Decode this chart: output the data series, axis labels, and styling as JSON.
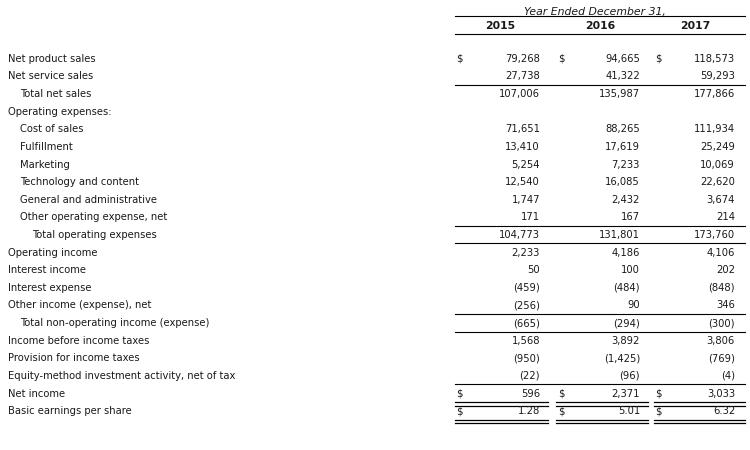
{
  "header_title": "Year Ended December 31,",
  "columns": [
    "2015",
    "2016",
    "2017"
  ],
  "rows": [
    {
      "label": "Net product sales",
      "indent": 0,
      "dollar_sign": true,
      "vals": [
        "79,268",
        "94,665",
        "118,573"
      ],
      "line_below": false,
      "double_below": false
    },
    {
      "label": "Net service sales",
      "indent": 0,
      "dollar_sign": false,
      "vals": [
        "27,738",
        "41,322",
        "59,293"
      ],
      "line_below": true,
      "double_below": false
    },
    {
      "label": "Total net sales",
      "indent": 1,
      "dollar_sign": false,
      "vals": [
        "107,006",
        "135,987",
        "177,866"
      ],
      "line_below": false,
      "double_below": false
    },
    {
      "label": "Operating expenses:",
      "indent": 0,
      "dollar_sign": false,
      "vals": [
        "",
        "",
        ""
      ],
      "line_below": false,
      "double_below": false
    },
    {
      "label": "Cost of sales",
      "indent": 1,
      "dollar_sign": false,
      "vals": [
        "71,651",
        "88,265",
        "111,934"
      ],
      "line_below": false,
      "double_below": false
    },
    {
      "label": "Fulfillment",
      "indent": 1,
      "dollar_sign": false,
      "vals": [
        "13,410",
        "17,619",
        "25,249"
      ],
      "line_below": false,
      "double_below": false
    },
    {
      "label": "Marketing",
      "indent": 1,
      "dollar_sign": false,
      "vals": [
        "5,254",
        "7,233",
        "10,069"
      ],
      "line_below": false,
      "double_below": false
    },
    {
      "label": "Technology and content",
      "indent": 1,
      "dollar_sign": false,
      "vals": [
        "12,540",
        "16,085",
        "22,620"
      ],
      "line_below": false,
      "double_below": false
    },
    {
      "label": "General and administrative",
      "indent": 1,
      "dollar_sign": false,
      "vals": [
        "1,747",
        "2,432",
        "3,674"
      ],
      "line_below": false,
      "double_below": false
    },
    {
      "label": "Other operating expense, net",
      "indent": 1,
      "dollar_sign": false,
      "vals": [
        "171",
        "167",
        "214"
      ],
      "line_below": true,
      "double_below": false
    },
    {
      "label": "Total operating expenses",
      "indent": 2,
      "dollar_sign": false,
      "vals": [
        "104,773",
        "131,801",
        "173,760"
      ],
      "line_below": true,
      "double_below": false
    },
    {
      "label": "Operating income",
      "indent": 0,
      "dollar_sign": false,
      "vals": [
        "2,233",
        "4,186",
        "4,106"
      ],
      "line_below": false,
      "double_below": false
    },
    {
      "label": "Interest income",
      "indent": 0,
      "dollar_sign": false,
      "vals": [
        "50",
        "100",
        "202"
      ],
      "line_below": false,
      "double_below": false
    },
    {
      "label": "Interest expense",
      "indent": 0,
      "dollar_sign": false,
      "vals": [
        "(459)",
        "(484)",
        "(848)"
      ],
      "line_below": false,
      "double_below": false
    },
    {
      "label": "Other income (expense), net",
      "indent": 0,
      "dollar_sign": false,
      "vals": [
        "(256)",
        "90",
        "346"
      ],
      "line_below": true,
      "double_below": false
    },
    {
      "label": "Total non-operating income (expense)",
      "indent": 1,
      "dollar_sign": false,
      "vals": [
        "(665)",
        "(294)",
        "(300)"
      ],
      "line_below": true,
      "double_below": false
    },
    {
      "label": "Income before income taxes",
      "indent": 0,
      "dollar_sign": false,
      "vals": [
        "1,568",
        "3,892",
        "3,806"
      ],
      "line_below": false,
      "double_below": false
    },
    {
      "label": "Provision for income taxes",
      "indent": 0,
      "dollar_sign": false,
      "vals": [
        "(950)",
        "(1,425)",
        "(769)"
      ],
      "line_below": false,
      "double_below": false
    },
    {
      "label": "Equity-method investment activity, net of tax",
      "indent": 0,
      "dollar_sign": false,
      "vals": [
        "(22)",
        "(96)",
        "(4)"
      ],
      "line_below": true,
      "double_below": false
    },
    {
      "label": "Net income",
      "indent": 0,
      "dollar_sign": true,
      "vals": [
        "596",
        "2,371",
        "3,033"
      ],
      "line_below": true,
      "double_below": true
    },
    {
      "label": "Basic earnings per share",
      "indent": 0,
      "dollar_sign": true,
      "vals": [
        "1.28",
        "5.01",
        "6.32"
      ],
      "line_below": true,
      "double_below": true
    }
  ],
  "bg_color": "#ffffff",
  "text_color": "#1a1a1a",
  "font_size": 7.2,
  "header_font_size": 7.8
}
